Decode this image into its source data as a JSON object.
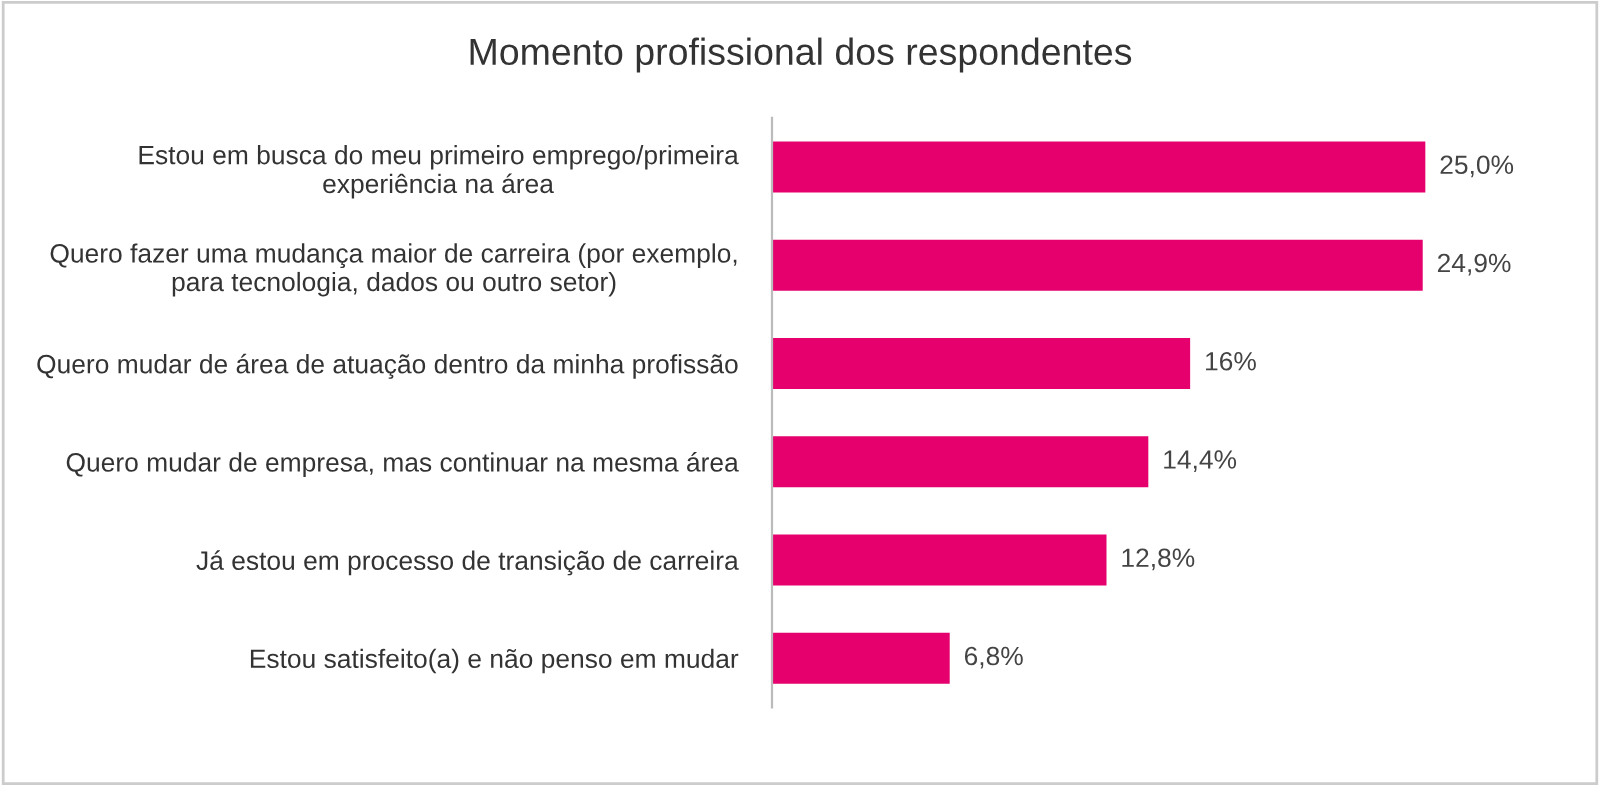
{
  "chart_data": {
    "type": "bar",
    "orientation": "horizontal",
    "title": "Momento profissional dos respondentes",
    "categories": [
      "Estou em busca do meu primeiro emprego/primeira\nexperiência na área",
      "Quero fazer uma mudança maior de carreira (por exemplo,\npara tecnologia, dados ou outro setor)",
      "Quero mudar de área de atuação dentro da minha profissão",
      "Quero mudar de empresa, mas continuar na mesma área",
      "Já estou em processo de transição de carreira",
      "Estou satisfeito(a) e não penso em mudar"
    ],
    "values": [
      25.0,
      24.9,
      16,
      14.4,
      12.8,
      6.8
    ],
    "value_labels": [
      "25,0%",
      "24,9%",
      "16%",
      "14,4%",
      "12,8%",
      "6,8%"
    ],
    "color": "#e6006e",
    "grid": false,
    "legend": false
  }
}
